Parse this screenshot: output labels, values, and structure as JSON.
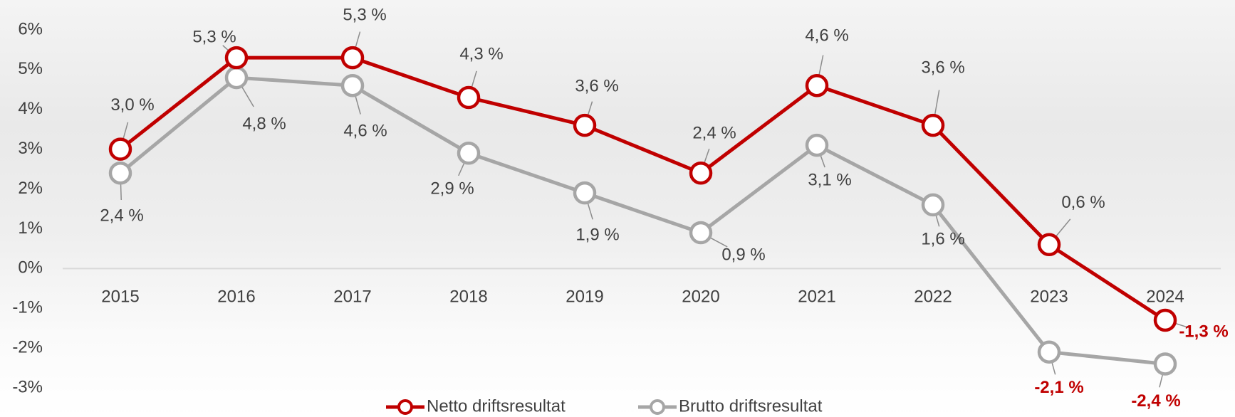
{
  "chart_data": {
    "type": "line",
    "categories": [
      "2015",
      "2016",
      "2017",
      "2018",
      "2019",
      "2020",
      "2021",
      "2022",
      "2023",
      "2024"
    ],
    "series": [
      {
        "name": "Netto driftsresultat",
        "color": "#c00000",
        "values": [
          3.0,
          5.3,
          5.3,
          4.3,
          3.6,
          2.4,
          4.6,
          3.6,
          0.6,
          -1.3
        ],
        "value_labels": [
          "3,0 %",
          "5,3 %",
          "5,3 %",
          "4,3 %",
          "3,6 %",
          "2,4 %",
          "4,6 %",
          "3,6 %",
          "0,6 %",
          "-1,3 %"
        ]
      },
      {
        "name": "Brutto driftsresultat",
        "color": "#a6a6a6",
        "values": [
          2.4,
          4.8,
          4.6,
          2.9,
          1.9,
          0.9,
          3.1,
          1.6,
          -2.1,
          -2.4
        ],
        "value_labels": [
          "2,4 %",
          "4,8 %",
          "4,6 %",
          "2,9 %",
          "1,9 %",
          "0,9 %",
          "3,1 %",
          "1,6 %",
          "-2,1 %",
          "-2,4 %"
        ]
      }
    ],
    "ylim": [
      -3,
      6
    ],
    "yticks": [
      {
        "value": -3,
        "label": "-3%"
      },
      {
        "value": -2,
        "label": "-2%"
      },
      {
        "value": -1,
        "label": "-1%"
      },
      {
        "value": 0,
        "label": "0%"
      },
      {
        "value": 1,
        "label": "1%"
      },
      {
        "value": 2,
        "label": "2%"
      },
      {
        "value": 3,
        "label": "3%"
      },
      {
        "value": 4,
        "label": "4%"
      },
      {
        "value": 5,
        "label": "5%"
      },
      {
        "value": 6,
        "label": "6%"
      }
    ],
    "negative_label_color": "#c00000"
  }
}
